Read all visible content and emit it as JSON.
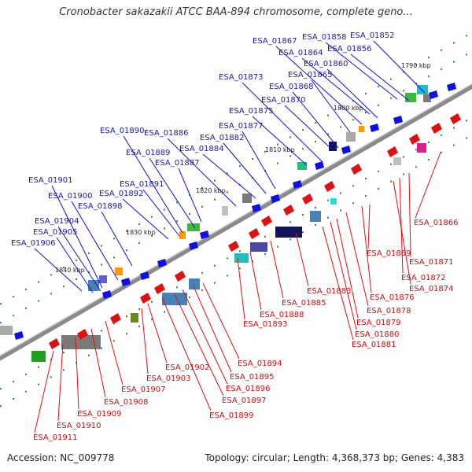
{
  "title": "Cronobacter sakazakii ATCC BAA-894 chromosome, complete geno...",
  "footer": {
    "accession": "Accession: NC_009778",
    "summary": "Topology: circular; Length: 4,368,373 bp; Genes: 4,383"
  },
  "colors": {
    "backbone": "#8a8a8a",
    "forward_gene": "#1010e0",
    "reverse_gene": "#e01010",
    "forward_label": "#1a1aa8",
    "reverse_label": "#cc1010"
  },
  "scale_labels": [
    "1790 kbp",
    "1800 kbp",
    "1810 kbp",
    "1820 kbp",
    "1830 kbp",
    "1840 kbp"
  ],
  "forward_genes": [
    "ESA_01852",
    "ESA_01856",
    "ESA_01858",
    "ESA_01860",
    "ESA_01864",
    "ESA_01865",
    "ESA_01867",
    "ESA_01868",
    "ESA_01870",
    "ESA_01873",
    "ESA_01875",
    "ESA_01877",
    "ESA_01882",
    "ESA_01884",
    "ESA_01886",
    "ESA_01887",
    "ESA_01889",
    "ESA_01890",
    "ESA_01891",
    "ESA_01892",
    "ESA_01898",
    "ESA_01900",
    "ESA_01901",
    "ESA_01904",
    "ESA_01905",
    "ESA_01906"
  ],
  "reverse_genes": [
    "ESA_01866",
    "ESA_01869",
    "ESA_01871",
    "ESA_01872",
    "ESA_01874",
    "ESA_01876",
    "ESA_01878",
    "ESA_01879",
    "ESA_01880",
    "ESA_01881",
    "ESA_01883",
    "ESA_01885",
    "ESA_01888",
    "ESA_01893",
    "ESA_01894",
    "ESA_01895",
    "ESA_01896",
    "ESA_01897",
    "ESA_01899",
    "ESA_01902",
    "ESA_01903",
    "ESA_01907",
    "ESA_01908",
    "ESA_01909",
    "ESA_01910",
    "ESA_01911"
  ]
}
